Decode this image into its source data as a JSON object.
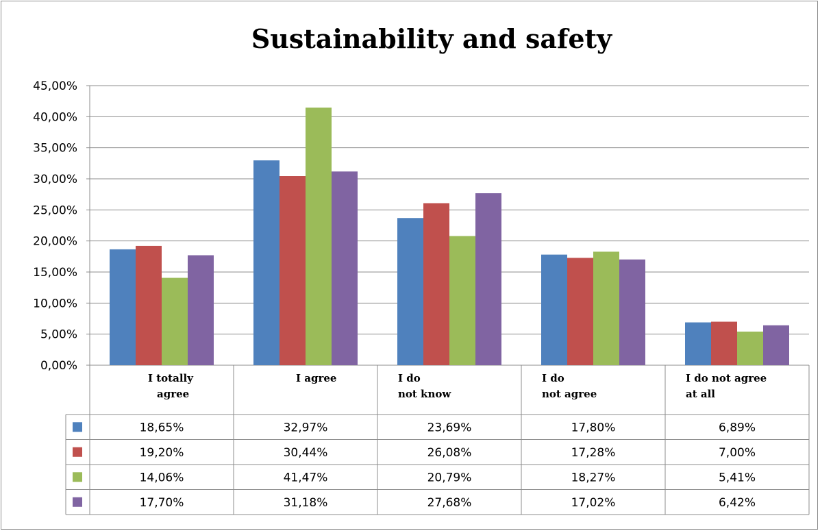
{
  "chart_data": {
    "type": "bar",
    "title": "Sustainability and safety",
    "categories": [
      [
        "I totally",
        "agree"
      ],
      [
        "I agree"
      ],
      [
        "I do",
        "not know"
      ],
      [
        "I do",
        "not agree"
      ],
      [
        "I do not agree",
        "at all"
      ]
    ],
    "series": [
      {
        "color": "#4f81bd",
        "values": [
          18.65,
          32.97,
          23.69,
          17.8,
          6.89
        ],
        "labels": [
          "18,65%",
          "32,97%",
          "23,69%",
          "17,80%",
          "6,89%"
        ]
      },
      {
        "color": "#c0504d",
        "values": [
          19.2,
          30.44,
          26.08,
          17.28,
          7.0
        ],
        "labels": [
          "19,20%",
          "30,44%",
          "26,08%",
          "17,28%",
          "7,00%"
        ]
      },
      {
        "color": "#9bbb59",
        "values": [
          14.06,
          41.47,
          20.79,
          18.27,
          5.41
        ],
        "labels": [
          "14,06%",
          "41,47%",
          "20,79%",
          "18,27%",
          "5,41%"
        ]
      },
      {
        "color": "#8064a2",
        "values": [
          17.7,
          31.18,
          27.68,
          17.02,
          6.42
        ],
        "labels": [
          "17,70%",
          "31,18%",
          "27,68%",
          "17,02%",
          "6,42%"
        ]
      }
    ],
    "yticks": [
      "0,00%",
      "5,00%",
      "10,00%",
      "15,00%",
      "20,00%",
      "25,00%",
      "30,00%",
      "35,00%",
      "40,00%",
      "45,00%"
    ],
    "ylim": [
      0,
      45
    ],
    "grid": true,
    "legend": "data-table"
  }
}
